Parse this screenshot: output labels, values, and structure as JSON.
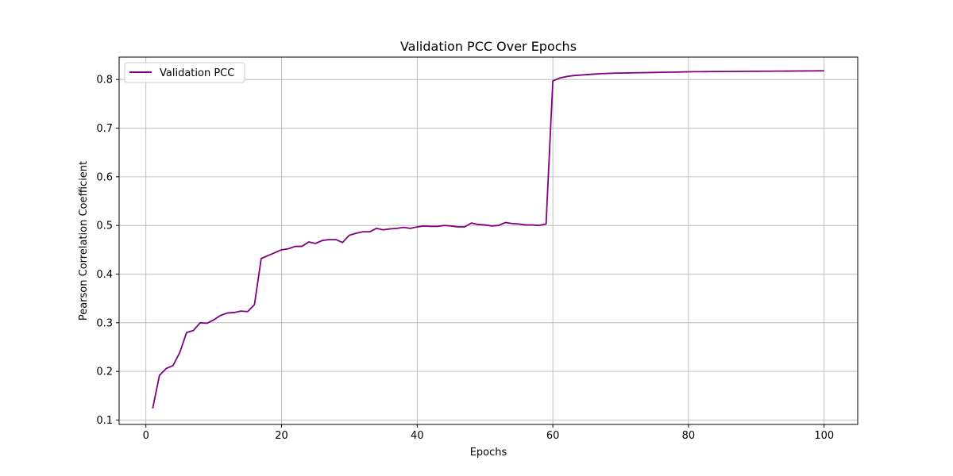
{
  "chart_data": {
    "type": "line",
    "title": "Validation PCC Over Epochs",
    "xlabel": "Epochs",
    "ylabel": "Pearson Correlation Coefficient",
    "xlim": [
      -3.95,
      104.95
    ],
    "ylim": [
      0.091,
      0.846
    ],
    "xticks": [
      0,
      20,
      40,
      60,
      80,
      100
    ],
    "yticks": [
      0.1,
      0.2,
      0.3,
      0.4,
      0.5,
      0.6,
      0.7,
      0.8
    ],
    "xtick_labels": [
      "0",
      "20",
      "40",
      "60",
      "80",
      "100"
    ],
    "ytick_labels": [
      "0.1",
      "0.2",
      "0.3",
      "0.4",
      "0.5",
      "0.6",
      "0.7",
      "0.8"
    ],
    "grid": true,
    "legend": "top-left",
    "series": [
      {
        "name": "Validation PCC",
        "color": "#800080",
        "x": [
          1,
          2,
          3,
          4,
          5,
          6,
          7,
          8,
          9,
          10,
          11,
          12,
          13,
          14,
          15,
          16,
          17,
          18,
          19,
          20,
          21,
          22,
          23,
          24,
          25,
          26,
          27,
          28,
          29,
          30,
          31,
          32,
          33,
          34,
          35,
          36,
          37,
          38,
          39,
          40,
          41,
          42,
          43,
          44,
          45,
          46,
          47,
          48,
          49,
          50,
          51,
          52,
          53,
          54,
          55,
          56,
          57,
          58,
          59,
          60,
          61,
          62,
          63,
          64,
          65,
          66,
          67,
          68,
          69,
          70,
          71,
          72,
          73,
          74,
          75,
          76,
          77,
          78,
          79,
          80,
          81,
          82,
          83,
          84,
          85,
          86,
          87,
          88,
          89,
          90,
          91,
          92,
          93,
          94,
          95,
          96,
          97,
          98,
          99,
          100
        ],
        "y": [
          0.124,
          0.192,
          0.206,
          0.212,
          0.239,
          0.28,
          0.284,
          0.3,
          0.299,
          0.306,
          0.315,
          0.32,
          0.321,
          0.324,
          0.323,
          0.337,
          0.432,
          0.438,
          0.444,
          0.45,
          0.452,
          0.457,
          0.457,
          0.466,
          0.463,
          0.469,
          0.471,
          0.471,
          0.465,
          0.48,
          0.484,
          0.487,
          0.487,
          0.494,
          0.491,
          0.493,
          0.494,
          0.496,
          0.494,
          0.497,
          0.499,
          0.498,
          0.498,
          0.5,
          0.499,
          0.497,
          0.497,
          0.505,
          0.502,
          0.501,
          0.499,
          0.5,
          0.506,
          0.504,
          0.503,
          0.501,
          0.501,
          0.5,
          0.503,
          0.797,
          0.803,
          0.806,
          0.808,
          0.809,
          0.81,
          0.811,
          0.812,
          0.8125,
          0.813,
          0.8132,
          0.8135,
          0.8138,
          0.814,
          0.8142,
          0.8145,
          0.8148,
          0.815,
          0.8152,
          0.8155,
          0.8158,
          0.816,
          0.8161,
          0.8162,
          0.8163,
          0.8164,
          0.8165,
          0.8166,
          0.8167,
          0.8168,
          0.8169,
          0.817,
          0.8171,
          0.8172,
          0.8173,
          0.8174,
          0.8175,
          0.8176,
          0.8177,
          0.8178,
          0.8179
        ]
      }
    ]
  }
}
